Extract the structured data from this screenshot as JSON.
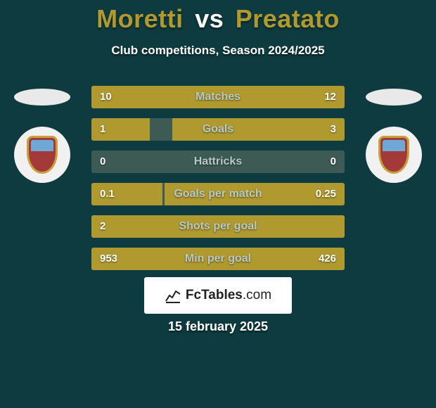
{
  "colors": {
    "bg": "#0e3b3f",
    "primary": "#b09a2f",
    "bar_track": "#3d5a54",
    "text_light": "#ffffff",
    "text_muted": "#b9c9c5",
    "oval": "#e9e9e9",
    "badge_bg": "#f1f1f1",
    "shield_border": "#c9a03a",
    "shield_body": "#a33a3a",
    "shield_top": "#6fa7d6",
    "brand_bg": "#ffffff",
    "brand_text": "#222222"
  },
  "title": {
    "p1": "Moretti",
    "vs": "vs",
    "p2": "Preatato",
    "p1_color": "#b09a2f",
    "vs_color": "#ffffff",
    "p2_color": "#b09a2f"
  },
  "subtitle": "Club competitions, Season 2024/2025",
  "rows": [
    {
      "label": "Matches",
      "left": "10",
      "right": "12",
      "lfrac": 0.45,
      "rfrac": 0.55
    },
    {
      "label": "Goals",
      "left": "1",
      "right": "3",
      "lfrac": 0.23,
      "rfrac": 0.68
    },
    {
      "label": "Hattricks",
      "left": "0",
      "right": "0",
      "lfrac": 0.0,
      "rfrac": 0.0
    },
    {
      "label": "Goals per match",
      "left": "0.1",
      "right": "0.25",
      "lfrac": 0.28,
      "rfrac": 0.71
    },
    {
      "label": "Shots per goal",
      "left": "2",
      "right": "",
      "lfrac": 1.0,
      "rfrac": 0.0
    },
    {
      "label": "Min per goal",
      "left": "953",
      "right": "426",
      "lfrac": 0.1,
      "rfrac": 0.9
    }
  ],
  "brand": {
    "name": "FcTables",
    "suffix": ".com"
  },
  "date": "15 february 2025"
}
